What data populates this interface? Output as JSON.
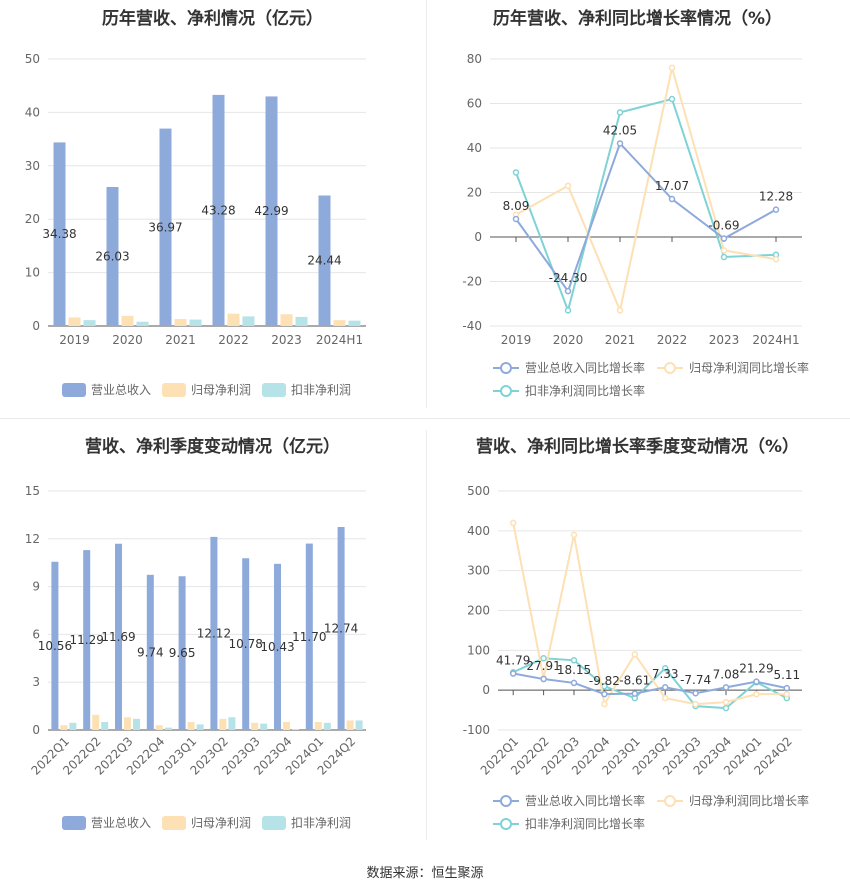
{
  "source": "数据来源：恒生聚源",
  "chart_data": [
    {
      "type": "bar",
      "title": "历年营收、净利情况（亿元）",
      "categories": [
        "2019",
        "2020",
        "2021",
        "2022",
        "2023",
        "2024H1"
      ],
      "ylim": [
        0,
        50
      ],
      "yticks": [
        0,
        10,
        20,
        30,
        40,
        50
      ],
      "grid": true,
      "legend_position": "bottom",
      "series": [
        {
          "name": "营业总收入",
          "color": "#8eaadb",
          "values": [
            34.38,
            26.03,
            36.97,
            43.28,
            42.99,
            24.44
          ],
          "labels": [
            "34.38",
            "26.03",
            "36.97",
            "43.28",
            "42.99",
            "24.44"
          ]
        },
        {
          "name": "归母净利润",
          "color": "#fde0b4",
          "values": [
            1.6,
            1.9,
            1.3,
            2.3,
            2.2,
            1.1
          ]
        },
        {
          "name": "扣非净利润",
          "color": "#b5e3e8",
          "values": [
            1.1,
            0.8,
            1.2,
            1.8,
            1.7,
            1.0
          ]
        }
      ]
    },
    {
      "type": "line",
      "title": "历年营收、净利同比增长率情况（%）",
      "categories": [
        "2019",
        "2020",
        "2021",
        "2022",
        "2023",
        "2024H1"
      ],
      "ylim": [
        -40,
        80
      ],
      "yticks": [
        -40,
        -20,
        0,
        20,
        40,
        60,
        80
      ],
      "grid": true,
      "legend_position": "bottom",
      "series": [
        {
          "name": "营业总收入同比增长率",
          "color": "#8eaadb",
          "values": [
            8.09,
            -24.3,
            42.05,
            17.07,
            -0.69,
            12.28
          ],
          "labels": [
            "8.09",
            "-24.30",
            "42.05",
            "17.07",
            "-0.69",
            "12.28"
          ]
        },
        {
          "name": "归母净利润同比增长率",
          "color": "#fde0b4",
          "values": [
            10,
            23,
            -33,
            76,
            -6,
            -10
          ]
        },
        {
          "name": "扣非净利润同比增长率",
          "color": "#7fd3d6",
          "values": [
            29,
            -33,
            56,
            62,
            -9,
            -8
          ]
        }
      ]
    },
    {
      "type": "bar",
      "title": "营收、净利季度变动情况（亿元）",
      "categories": [
        "2022Q1",
        "2022Q2",
        "2022Q3",
        "2022Q4",
        "2023Q1",
        "2023Q2",
        "2023Q3",
        "2023Q4",
        "2024Q1",
        "2024Q2"
      ],
      "ylim": [
        0,
        15
      ],
      "yticks": [
        0,
        3,
        6,
        9,
        12,
        15
      ],
      "grid": true,
      "legend_position": "bottom",
      "series": [
        {
          "name": "营业总收入",
          "color": "#8eaadb",
          "values": [
            10.56,
            11.29,
            11.69,
            9.74,
            9.65,
            12.12,
            10.78,
            10.43,
            11.7,
            12.74
          ],
          "labels": [
            "10.56",
            "11.29",
            "11.69",
            "9.74",
            "9.65",
            "12.12",
            "10.78",
            "10.43",
            "11.70",
            "12.74"
          ]
        },
        {
          "name": "归母净利润",
          "color": "#fde0b4",
          "values": [
            0.3,
            0.95,
            0.8,
            0.3,
            0.5,
            0.7,
            0.45,
            0.5,
            0.5,
            0.6
          ]
        },
        {
          "name": "扣非净利润",
          "color": "#b5e3e8",
          "values": [
            0.45,
            0.5,
            0.7,
            0.15,
            0.35,
            0.8,
            0.4,
            0.05,
            0.45,
            0.6
          ]
        }
      ]
    },
    {
      "type": "line",
      "title": "营收、净利同比增长率季度变动情况（%）",
      "categories": [
        "2022Q1",
        "2022Q2",
        "2022Q3",
        "2022Q4",
        "2023Q1",
        "2023Q2",
        "2023Q3",
        "2023Q4",
        "2024Q1",
        "2024Q2"
      ],
      "ylim": [
        -100,
        500
      ],
      "yticks": [
        -100,
        0,
        100,
        200,
        300,
        400,
        500
      ],
      "grid": true,
      "legend_position": "bottom",
      "series": [
        {
          "name": "营业总收入同比增长率",
          "color": "#8eaadb",
          "values": [
            41.79,
            27.91,
            18.15,
            -9.82,
            -8.61,
            7.33,
            -7.74,
            7.08,
            21.29,
            5.11
          ],
          "labels": [
            "41.79",
            "27.91",
            "18.15",
            "-9.82",
            "-8.61",
            "7.33",
            "-7.74",
            "7.08",
            "21.29",
            "5.11"
          ]
        },
        {
          "name": "归母净利润同比增长率",
          "color": "#fde0b4",
          "values": [
            420,
            30,
            390,
            -35,
            90,
            -20,
            -35,
            -30,
            -10,
            -10
          ]
        },
        {
          "name": "扣非净利润同比增长率",
          "color": "#7fd3d6",
          "values": [
            45,
            80,
            75,
            10,
            -20,
            55,
            -40,
            -45,
            20,
            -20
          ]
        }
      ]
    }
  ]
}
